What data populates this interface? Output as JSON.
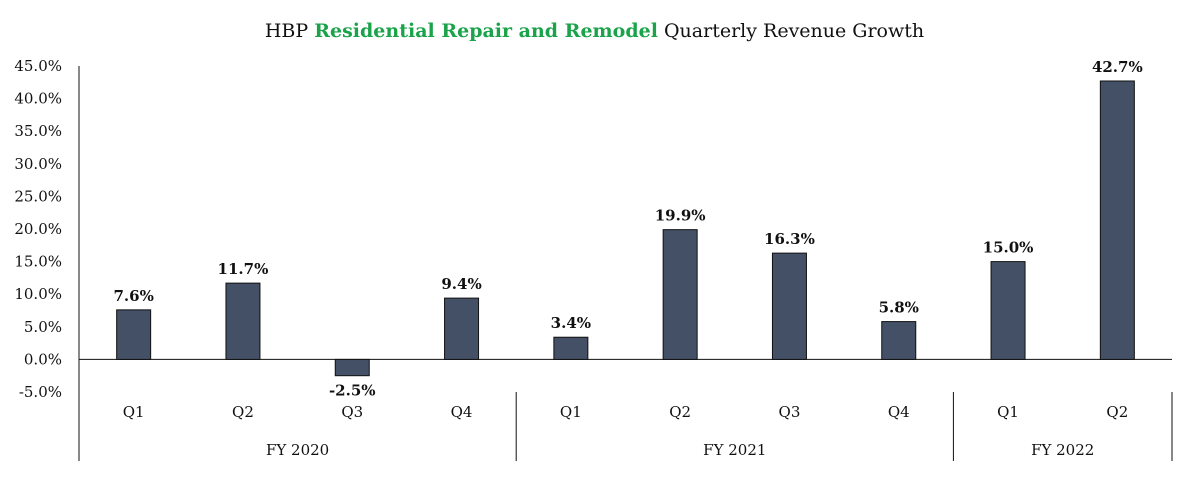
{
  "chart_data": {
    "type": "bar",
    "title": {
      "prefix": "HBP ",
      "highlight": "Residential Repair and Remodel",
      "suffix": " Quarterly Revenue Growth"
    },
    "categories": [
      "Q1",
      "Q2",
      "Q3",
      "Q4",
      "Q1",
      "Q2",
      "Q3",
      "Q4",
      "Q1",
      "Q2"
    ],
    "groups": [
      {
        "label": "FY 2020",
        "count": 4
      },
      {
        "label": "FY 2021",
        "count": 4
      },
      {
        "label": "FY 2022",
        "count": 2
      }
    ],
    "values": [
      7.6,
      11.7,
      -2.5,
      9.4,
      3.4,
      19.9,
      16.3,
      5.8,
      15.0,
      42.7
    ],
    "data_labels": [
      "7.6%",
      "11.7%",
      "-2.5%",
      "9.4%",
      "3.4%",
      "19.9%",
      "16.3%",
      "5.8%",
      "15.0%",
      "42.7%"
    ],
    "yticks": [
      -5,
      0,
      5,
      10,
      15,
      20,
      25,
      30,
      35,
      40,
      45
    ],
    "ytick_labels": [
      "-5.0%",
      "0.0%",
      "5.0%",
      "10.0%",
      "15.0%",
      "20.0%",
      "25.0%",
      "30.0%",
      "35.0%",
      "40.0%",
      "45.0%"
    ],
    "ylim": [
      -5,
      45
    ],
    "xlabel": "",
    "ylabel": "",
    "grid": false,
    "bar_color": "#435066",
    "highlight_color": "#1aa34a"
  }
}
